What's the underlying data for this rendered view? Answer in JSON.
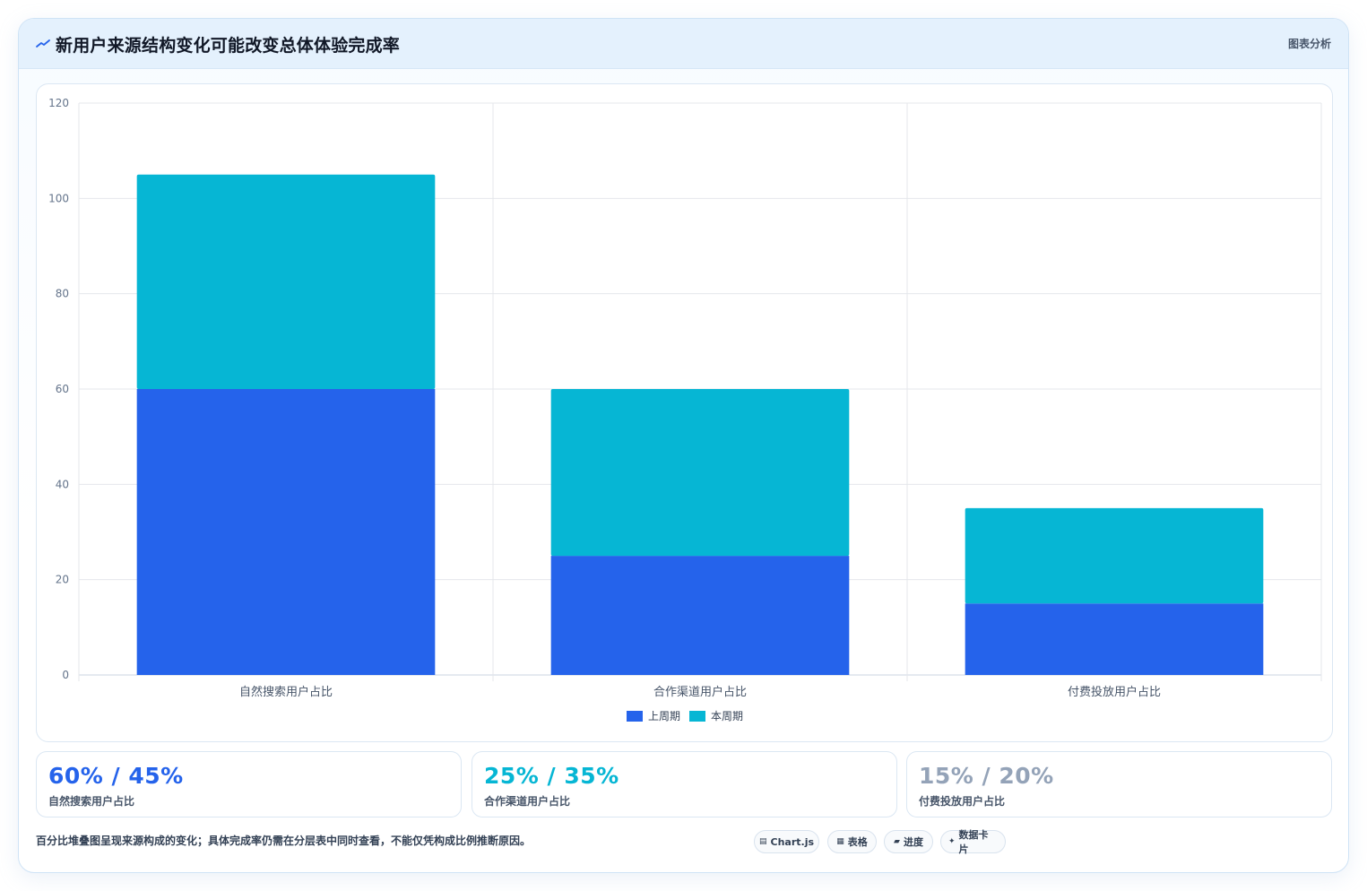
{
  "header": {
    "title": "新用户来源结构变化可能改变总体体验完成率",
    "tag": "图表分析"
  },
  "chart_data": {
    "type": "bar",
    "stacked": true,
    "categories": [
      "自然搜索用户占比",
      "合作渠道用户占比",
      "付费投放用户占比"
    ],
    "series": [
      {
        "name": "上周期",
        "values": [
          60,
          25,
          15
        ],
        "color": "#2563eb"
      },
      {
        "name": "本周期",
        "values": [
          45,
          35,
          20
        ],
        "color": "#06b6d4"
      }
    ],
    "ylim": [
      0,
      120
    ],
    "yticks": [
      0,
      20,
      40,
      60,
      80,
      100,
      120
    ],
    "grid": true,
    "legend_position": "bottom"
  },
  "stats": [
    {
      "value": "60% / 45%",
      "label": "自然搜索用户占比",
      "color": "#2563eb"
    },
    {
      "value": "25% / 35%",
      "label": "合作渠道用户占比",
      "color": "#06b6d4"
    },
    {
      "value": "15% / 20%",
      "label": "付费投放用户占比",
      "color": "#94a3b8"
    }
  ],
  "note": "百分比堆叠图呈现来源构成的变化；具体完成率仍需在分层表中同时查看，不能仅凭构成比例推断原因。",
  "chips": [
    {
      "icon": "▤",
      "label": "Chart.js"
    },
    {
      "icon": "▦",
      "label": "表格"
    },
    {
      "icon": "▰",
      "label": "进度"
    },
    {
      "icon": "✦",
      "label": "数据卡片"
    }
  ]
}
